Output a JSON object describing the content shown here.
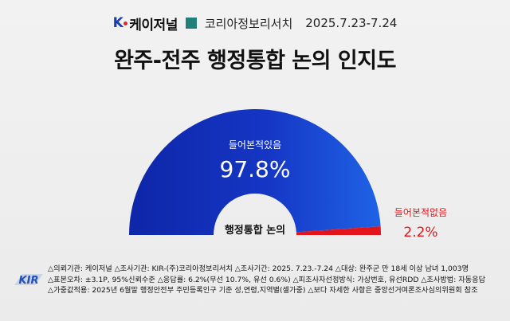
{
  "header": {
    "logo": "케이저널",
    "logo_prefix": "K",
    "org": "코리아정보리서치",
    "dates": "2025.7.23-7.24",
    "accent_color": "#21807a"
  },
  "title": "완주-전주 행정통합 논의 인지도",
  "chart_data": {
    "type": "pie",
    "subtype": "half-donut",
    "title": "완주-전주 행정통합 논의 인지도",
    "center_label": "행정통합 논의",
    "slices": [
      {
        "label": "들어본적있음",
        "value": 97.8,
        "display": "97.8%",
        "color": "#1433b8"
      },
      {
        "label": "들어본적없음",
        "value": 2.2,
        "display": "2.2%",
        "color": "#e3151b"
      }
    ]
  },
  "footer": {
    "kir_logo": "KIR",
    "lines": [
      "△의뢰기관: 케이저널  △조사기관: KIR-(주)코리아정보리서치 △조사기간: 2025. 7.23.-7.24  △대상: 완주군 만 18세 이상 남녀 1,003명",
      "△표본오차: ±3.1P, 95%신뢰수준 △응답률: 6.2%(무선 10.7%, 유선 0.6%) △피조사자선정방식: 가상번호, 유선RDD  △조사방법: 자동응답",
      "△가중값적용: 2025년 6월말 행정안전부 주민등록인구 기준 성,연령,지역별(셀가중) △보다 자세한 사항은 중앙선거여론조사심의위원회 참조"
    ]
  }
}
